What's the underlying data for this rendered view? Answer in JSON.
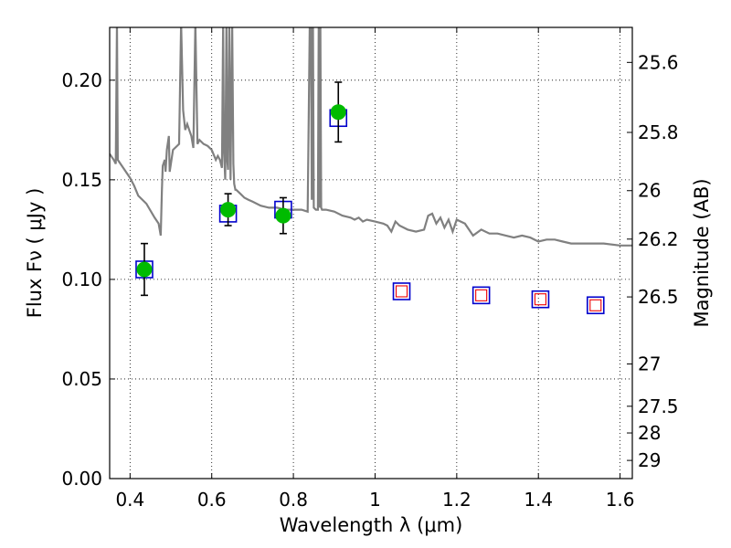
{
  "chart_data": {
    "type": "scatter",
    "xlabel": "Wavelength  λ (μm)",
    "ylabel": "Flux  Fν  ( μJy )",
    "ylabel_right": "Magnitude (AB)",
    "xlim": [
      0.35,
      1.63
    ],
    "ylim": [
      0.0,
      0.2265
    ],
    "grid": true,
    "x_ticks": [
      0.4,
      0.6,
      0.8,
      1.0,
      1.2,
      1.4,
      1.6
    ],
    "x_tick_labels": [
      "0.4",
      "0.6",
      "0.8",
      "1",
      "1.2",
      "1.4",
      "1.6"
    ],
    "y_ticks": [
      0.0,
      0.05,
      0.1,
      0.15,
      0.2
    ],
    "y_tick_labels": [
      "0.00",
      "0.05",
      "0.10",
      "0.15",
      "0.20"
    ],
    "magnitude_ticks": [
      {
        "mag": 25.6,
        "label": "25.6"
      },
      {
        "mag": 25.8,
        "label": "25.8"
      },
      {
        "mag": 26.0,
        "label": "26"
      },
      {
        "mag": 26.2,
        "label": "26.2"
      },
      {
        "mag": 26.5,
        "label": "26.5"
      },
      {
        "mag": 27.0,
        "label": "27"
      },
      {
        "mag": 27.5,
        "label": "27.5"
      },
      {
        "mag": 28.0,
        "label": "28"
      },
      {
        "mag": 29.0,
        "label": "29"
      }
    ],
    "colors": {
      "observed": "#00bb00",
      "model_outer": "#0000cc",
      "model_inner": "#ee0000",
      "spectrum": "#808080",
      "errorbar": "#000000"
    },
    "series": [
      {
        "kind": "observed",
        "x": [
          0.435,
          0.64,
          0.775,
          0.91
        ],
        "y": [
          0.105,
          0.135,
          0.132,
          0.184
        ],
        "yerr": [
          0.013,
          0.008,
          0.009,
          0.015
        ]
      },
      {
        "kind": "model",
        "x": [
          0.435,
          0.64,
          0.775,
          0.91,
          1.065,
          1.26,
          1.405,
          1.54
        ],
        "y": [
          0.105,
          0.133,
          0.135,
          0.181,
          0.094,
          0.092,
          0.09,
          0.087
        ],
        "inner_visible": [
          false,
          false,
          false,
          false,
          true,
          true,
          true,
          true
        ]
      },
      {
        "kind": "spectrum",
        "x": [
          0.35,
          0.36,
          0.365,
          0.368,
          0.37,
          0.38,
          0.4,
          0.41,
          0.42,
          0.44,
          0.46,
          0.47,
          0.475,
          0.478,
          0.48,
          0.485,
          0.487,
          0.49,
          0.495,
          0.497,
          0.5,
          0.505,
          0.51,
          0.52,
          0.525,
          0.53,
          0.535,
          0.54,
          0.545,
          0.55,
          0.555,
          0.56,
          0.565,
          0.57,
          0.58,
          0.59,
          0.6,
          0.61,
          0.615,
          0.62,
          0.625,
          0.628,
          0.63,
          0.633,
          0.636,
          0.638,
          0.64,
          0.643,
          0.646,
          0.65,
          0.653,
          0.655,
          0.658,
          0.66,
          0.67,
          0.68,
          0.69,
          0.7,
          0.72,
          0.74,
          0.75,
          0.76,
          0.78,
          0.8,
          0.82,
          0.835,
          0.84,
          0.843,
          0.845,
          0.848,
          0.85,
          0.855,
          0.86,
          0.862,
          0.864,
          0.866,
          0.868,
          0.87,
          0.88,
          0.9,
          0.92,
          0.94,
          0.95,
          0.96,
          0.97,
          0.98,
          1.0,
          1.02,
          1.03,
          1.04,
          1.05,
          1.06,
          1.08,
          1.1,
          1.12,
          1.13,
          1.14,
          1.15,
          1.16,
          1.17,
          1.18,
          1.19,
          1.2,
          1.22,
          1.24,
          1.26,
          1.28,
          1.3,
          1.32,
          1.34,
          1.36,
          1.38,
          1.4,
          1.42,
          1.44,
          1.46,
          1.48,
          1.5,
          1.53,
          1.56,
          1.6,
          1.63
        ],
        "y": [
          0.163,
          0.16,
          0.158,
          0.23,
          0.16,
          0.157,
          0.151,
          0.147,
          0.142,
          0.138,
          0.131,
          0.128,
          0.122,
          0.145,
          0.157,
          0.16,
          0.154,
          0.165,
          0.172,
          0.154,
          0.158,
          0.165,
          0.166,
          0.168,
          0.23,
          0.185,
          0.175,
          0.178,
          0.175,
          0.172,
          0.166,
          0.23,
          0.168,
          0.17,
          0.168,
          0.167,
          0.165,
          0.16,
          0.162,
          0.16,
          0.156,
          0.23,
          0.165,
          0.15,
          0.23,
          0.16,
          0.155,
          0.23,
          0.15,
          0.23,
          0.158,
          0.148,
          0.145,
          0.145,
          0.143,
          0.141,
          0.14,
          0.139,
          0.137,
          0.136,
          0.136,
          0.136,
          0.135,
          0.135,
          0.135,
          0.134,
          0.23,
          0.23,
          0.14,
          0.23,
          0.136,
          0.135,
          0.135,
          0.23,
          0.136,
          0.23,
          0.136,
          0.135,
          0.135,
          0.134,
          0.132,
          0.131,
          0.13,
          0.131,
          0.129,
          0.13,
          0.129,
          0.128,
          0.127,
          0.124,
          0.129,
          0.127,
          0.125,
          0.124,
          0.125,
          0.132,
          0.133,
          0.128,
          0.131,
          0.126,
          0.13,
          0.124,
          0.13,
          0.128,
          0.122,
          0.125,
          0.123,
          0.123,
          0.122,
          0.121,
          0.122,
          0.121,
          0.119,
          0.12,
          0.12,
          0.119,
          0.118,
          0.118,
          0.118,
          0.118,
          0.117,
          0.117
        ]
      }
    ]
  }
}
